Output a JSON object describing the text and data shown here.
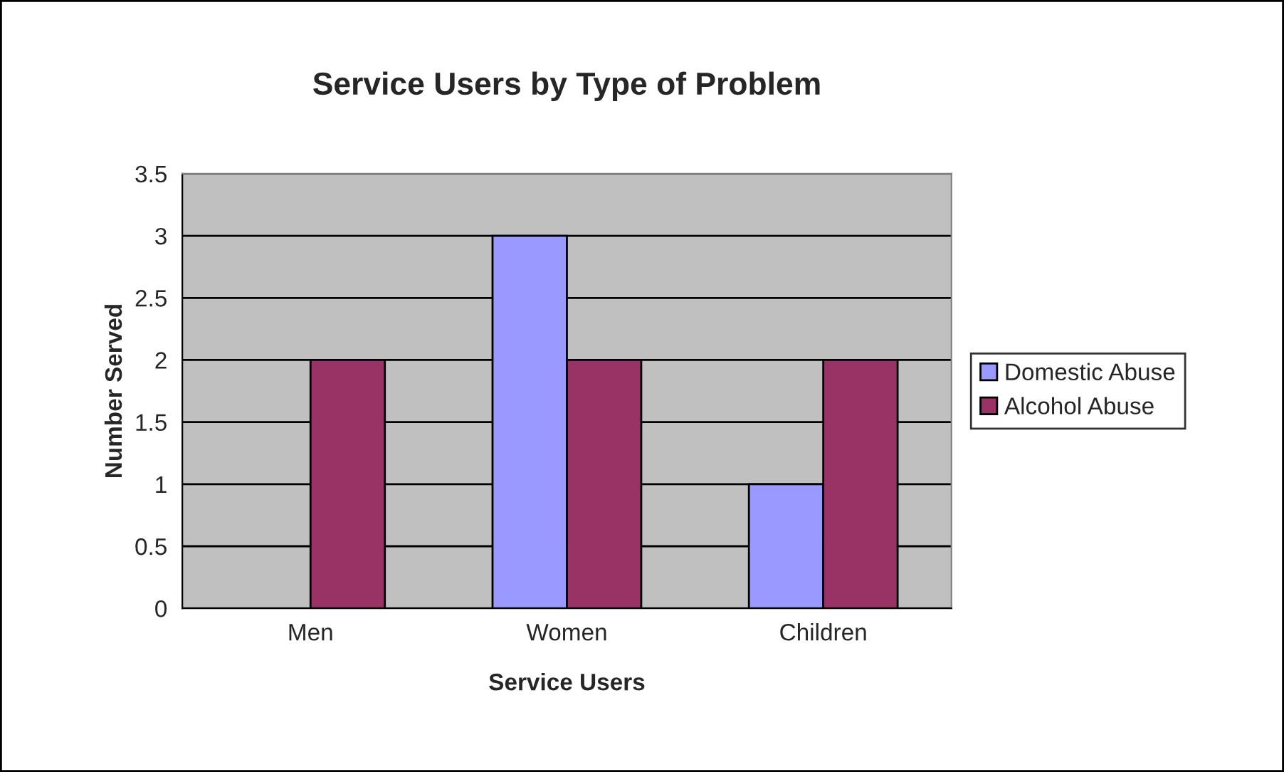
{
  "chart_data": {
    "type": "bar",
    "title": "Service Users by Type of Problem",
    "xlabel": "Service Users",
    "ylabel": "Number Served",
    "categories": [
      "Men",
      "Women",
      "Children"
    ],
    "series": [
      {
        "name": "Domestic Abuse",
        "color": "#9999ff",
        "values": [
          null,
          3,
          1
        ]
      },
      {
        "name": "Alcohol Abuse",
        "color": "#993366",
        "values": [
          2,
          2,
          2
        ]
      }
    ],
    "ylim": [
      0,
      3.5
    ],
    "yticks": [
      0,
      0.5,
      1,
      1.5,
      2,
      2.5,
      3,
      3.5
    ],
    "grid": "y",
    "legend": "right"
  }
}
